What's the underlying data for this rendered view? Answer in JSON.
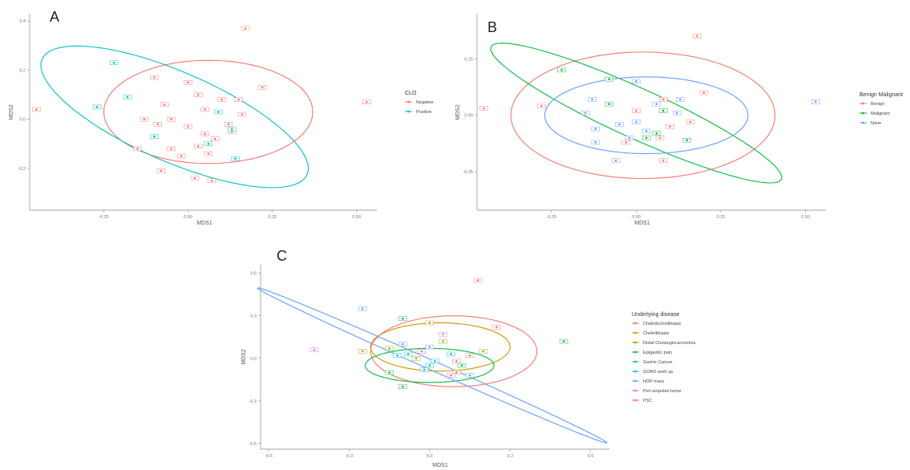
{
  "panels": {
    "A": {
      "letter": "A",
      "xlabel": "MDS1",
      "ylabel": "MDS2",
      "legend_title": "CLO",
      "xticks": [
        "-0.25",
        "0.00",
        "0.25",
        "0.50"
      ],
      "yticks": [
        "0.4",
        "0.2",
        "0.0",
        "-0.2"
      ]
    },
    "B": {
      "letter": "B",
      "xlabel": "MDS1",
      "ylabel": "MDS2",
      "legend_title": "Benign Malignant",
      "xticks": [
        "-0.25",
        "0.00",
        "0.25",
        "0.50"
      ],
      "yticks": [
        "0.25",
        "0.00",
        "-0.25"
      ]
    },
    "C": {
      "letter": "C",
      "xlabel": "MDS1",
      "ylabel": "MDS2",
      "legend_title": "Underlying disease",
      "xticks": [
        "-0.6",
        "-0.3",
        "0.0",
        "0.3",
        "0.6"
      ],
      "yticks": [
        "0.6",
        "0.3",
        "0.0",
        "-0.3",
        "-0.6"
      ]
    }
  },
  "chart_data": [
    {
      "type": "scatter",
      "panel": "A",
      "xlabel": "MDS1",
      "ylabel": "MDS2",
      "xlim": [
        -0.47,
        0.56
      ],
      "ylim": [
        -0.37,
        0.43
      ],
      "legend_position": "right",
      "grid": false,
      "series": [
        {
          "name": "Negative",
          "color": "#F8766D",
          "points": [
            [
              -0.45,
              0.04
            ],
            [
              0.17,
              0.37
            ],
            [
              0.22,
              0.13
            ],
            [
              0.53,
              0.07
            ],
            [
              -0.1,
              0.17
            ],
            [
              0.0,
              0.15
            ],
            [
              -0.07,
              0.06
            ],
            [
              0.05,
              0.04
            ],
            [
              0.1,
              0.08
            ],
            [
              0.15,
              0.08
            ],
            [
              0.03,
              0.1
            ],
            [
              -0.13,
              0.0
            ],
            [
              -0.05,
              0.0
            ],
            [
              -0.09,
              -0.02
            ],
            [
              0.0,
              -0.03
            ],
            [
              0.05,
              -0.06
            ],
            [
              0.12,
              -0.02
            ],
            [
              0.08,
              -0.08
            ],
            [
              -0.15,
              -0.12
            ],
            [
              -0.05,
              -0.12
            ],
            [
              0.03,
              -0.11
            ],
            [
              -0.02,
              -0.15
            ],
            [
              0.06,
              -0.14
            ],
            [
              -0.08,
              -0.21
            ],
            [
              0.13,
              -0.05
            ],
            [
              0.02,
              -0.24
            ],
            [
              0.16,
              0.02
            ],
            [
              0.07,
              -0.25
            ]
          ]
        },
        {
          "name": "Positive",
          "color": "#00BFC4",
          "points": [
            [
              -0.22,
              0.23
            ],
            [
              -0.18,
              0.09
            ],
            [
              -0.27,
              0.05
            ],
            [
              -0.1,
              -0.07
            ],
            [
              0.09,
              0.03
            ],
            [
              0.13,
              -0.04
            ],
            [
              0.14,
              -0.16
            ],
            [
              0.06,
              -0.1
            ]
          ]
        }
      ],
      "ellipses": [
        {
          "group": "Negative",
          "color": "#F8766D",
          "center": [
            0.06,
            0.03
          ],
          "semi_axes": [
            0.31,
            0.21
          ],
          "angle_deg": 0
        },
        {
          "group": "Positive",
          "color": "#00BFC4",
          "center": [
            -0.04,
            0.01
          ],
          "semi_axes": [
            0.46,
            0.17
          ],
          "angle_deg": -33
        }
      ]
    },
    {
      "type": "scatter",
      "panel": "B",
      "xlabel": "MDS1",
      "ylabel": "MDS2",
      "xlim": [
        -0.47,
        0.56
      ],
      "ylim": [
        -0.42,
        0.45
      ],
      "legend_position": "right",
      "grid": false,
      "series": [
        {
          "name": "Benign",
          "color": "#F8766D",
          "points": [
            [
              -0.45,
              0.03
            ],
            [
              -0.28,
              0.04
            ],
            [
              0.18,
              0.35
            ],
            [
              0.2,
              0.1
            ],
            [
              0.0,
              0.02
            ],
            [
              0.08,
              0.07
            ],
            [
              0.1,
              -0.05
            ],
            [
              0.16,
              -0.03
            ],
            [
              -0.03,
              -0.12
            ],
            [
              0.07,
              -0.1
            ],
            [
              0.08,
              -0.2
            ]
          ]
        },
        {
          "name": "Malignant",
          "color": "#00BA38",
          "points": [
            [
              -0.22,
              0.2
            ],
            [
              -0.08,
              0.16
            ],
            [
              -0.08,
              0.05
            ],
            [
              0.08,
              0.02
            ],
            [
              0.06,
              -0.08
            ],
            [
              0.15,
              -0.11
            ],
            [
              0.03,
              -0.1
            ]
          ]
        },
        {
          "name": "None",
          "color": "#619CFF",
          "points": [
            [
              0.53,
              0.06
            ],
            [
              0.0,
              0.15
            ],
            [
              -0.13,
              0.07
            ],
            [
              0.06,
              0.05
            ],
            [
              0.13,
              0.07
            ],
            [
              -0.15,
              0.01
            ],
            [
              0.0,
              -0.03
            ],
            [
              -0.05,
              -0.04
            ],
            [
              0.03,
              -0.07
            ],
            [
              -0.12,
              -0.06
            ],
            [
              -0.02,
              -0.1
            ],
            [
              0.12,
              0.01
            ],
            [
              -0.06,
              -0.2
            ],
            [
              -0.12,
              -0.12
            ]
          ]
        }
      ],
      "ellipses": [
        {
          "group": "Benign",
          "color": "#F8766D",
          "center": [
            0.02,
            0.0
          ],
          "semi_axes": [
            0.39,
            0.28
          ],
          "angle_deg": 0
        },
        {
          "group": "Malignant",
          "color": "#00BA38",
          "center": [
            0.0,
            0.01
          ],
          "semi_axes": [
            0.52,
            0.1
          ],
          "angle_deg": -35
        },
        {
          "group": "None",
          "color": "#619CFF",
          "center": [
            0.03,
            0.0
          ],
          "semi_axes": [
            0.3,
            0.17
          ],
          "angle_deg": 0
        }
      ]
    },
    {
      "type": "scatter",
      "panel": "C",
      "xlabel": "MDS1",
      "ylabel": "MDS2",
      "xlim": [
        -0.63,
        0.67
      ],
      "ylim": [
        -0.64,
        0.66
      ],
      "legend_position": "right",
      "grid": false,
      "series": [
        {
          "name": "Choledocholithiasis",
          "color": "#F8766D",
          "points": [
            [
              0.25,
              0.22
            ],
            [
              0.1,
              -0.02
            ],
            [
              0.15,
              0.02
            ]
          ]
        },
        {
          "name": "Cholelithiasis",
          "color": "#D39200",
          "points": [
            [
              0.0,
              0.25
            ],
            [
              -0.25,
              0.05
            ],
            [
              0.2,
              0.05
            ],
            [
              0.1,
              -0.1
            ]
          ]
        },
        {
          "name": "Distal Cholangiocarcinoma",
          "color": "#93AA00",
          "points": [
            [
              -0.15,
              0.07
            ],
            [
              0.05,
              0.12
            ],
            [
              -0.05,
              0.0
            ]
          ]
        },
        {
          "name": "Epigastric pain",
          "color": "#00BA38",
          "points": [
            [
              0.5,
              0.12
            ],
            [
              -0.1,
              0.28
            ],
            [
              -0.15,
              -0.1
            ],
            [
              -0.1,
              -0.2
            ],
            [
              0.12,
              -0.05
            ]
          ]
        },
        {
          "name": "Gastric Cancer",
          "color": "#00C19F",
          "points": [
            [
              -0.08,
              0.03
            ],
            [
              0.0,
              -0.05
            ],
            [
              0.08,
              0.03
            ]
          ]
        },
        {
          "name": "GORD work up",
          "color": "#00B9E3",
          "points": [
            [
              -0.12,
              0.02
            ],
            [
              0.02,
              -0.02
            ],
            [
              -0.02,
              -0.08
            ]
          ]
        },
        {
          "name": "HOP mass",
          "color": "#619CFF",
          "points": [
            [
              -0.25,
              0.35
            ],
            [
              -0.1,
              0.1
            ],
            [
              0.15,
              -0.12
            ],
            [
              0.0,
              0.08
            ]
          ]
        },
        {
          "name": "Peri ampulari tumor",
          "color": "#DB72FB",
          "points": [
            [
              -0.43,
              0.06
            ],
            [
              0.05,
              0.17
            ]
          ]
        },
        {
          "name": "PSC",
          "color": "#FF61C3",
          "points": [
            [
              0.18,
              0.55
            ],
            [
              -0.03,
              0.05
            ],
            [
              0.08,
              -0.12
            ]
          ]
        }
      ],
      "ellipses": [
        {
          "group": "Choledocholithiasis",
          "color": "#F8766D",
          "center": [
            0.09,
            0.05
          ],
          "semi_axes": [
            0.31,
            0.25
          ],
          "angle_deg": 0
        },
        {
          "group": "Cholelithiasis",
          "color": "#D39200",
          "center": [
            0.04,
            0.08
          ],
          "semi_axes": [
            0.26,
            0.17
          ],
          "angle_deg": 0
        },
        {
          "group": "Epigastric pain",
          "color": "#00BA38",
          "center": [
            0.0,
            -0.05
          ],
          "semi_axes": [
            0.24,
            0.12
          ],
          "angle_deg": 0
        },
        {
          "group": "HOP mass",
          "color": "#619CFF",
          "center": [
            0.01,
            -0.05
          ],
          "semi_axes": [
            0.85,
            0.028
          ],
          "angle_deg": -40
        }
      ]
    }
  ]
}
